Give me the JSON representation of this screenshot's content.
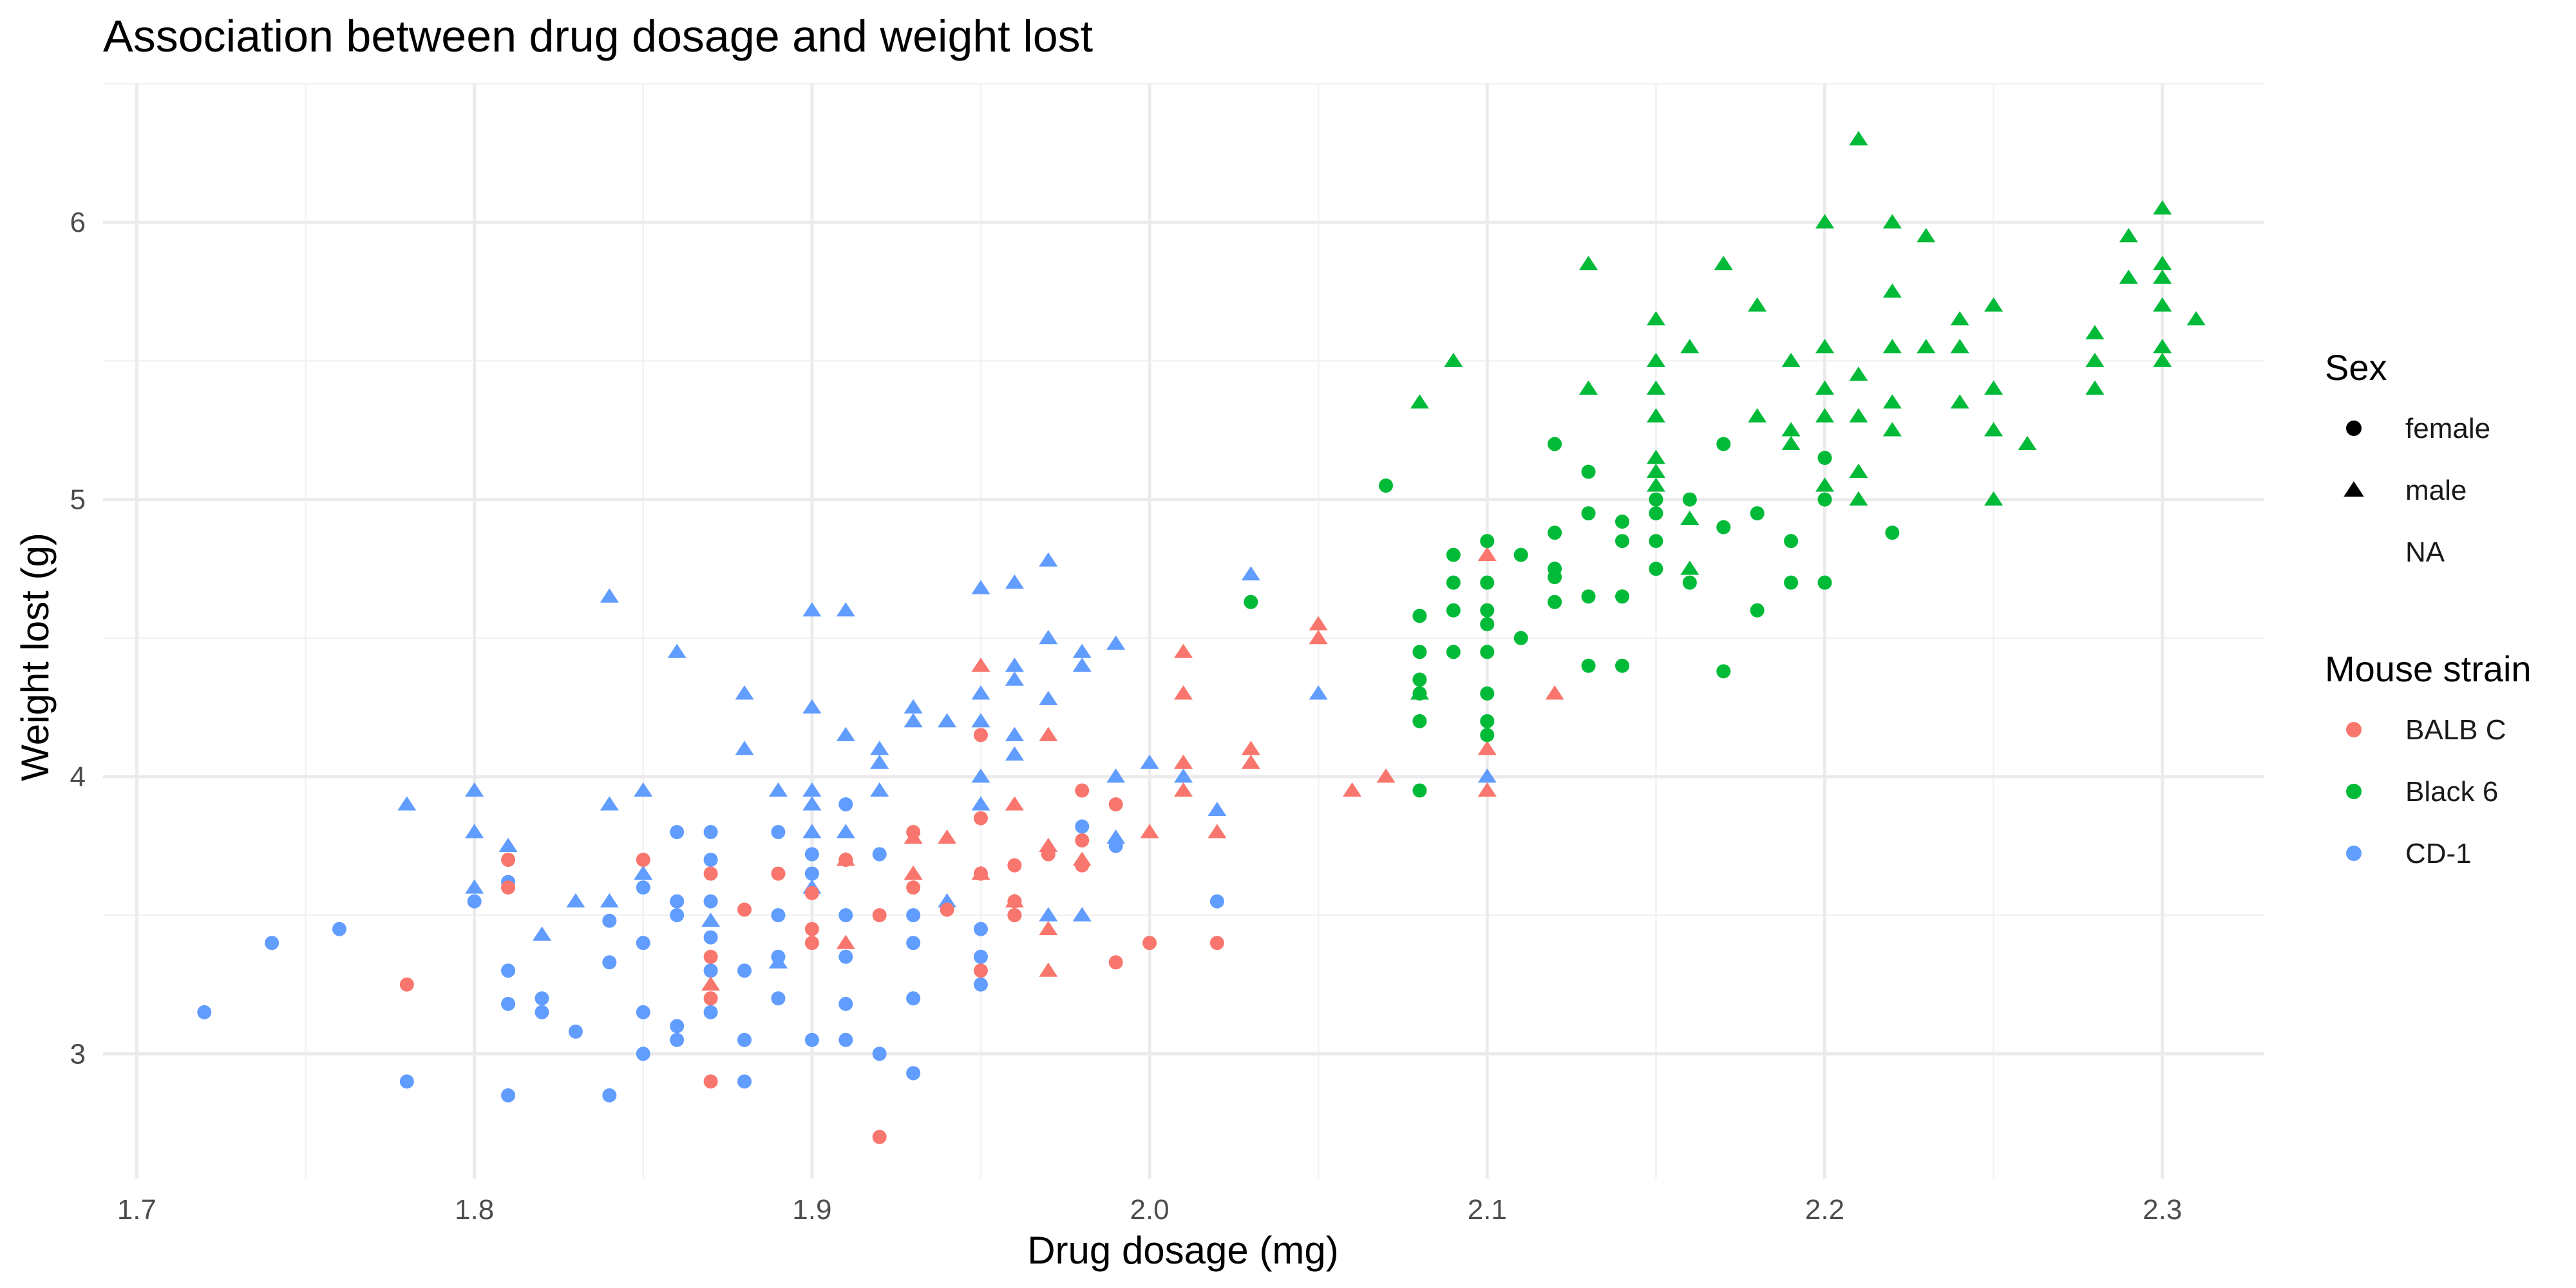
{
  "chart_data": {
    "type": "scatter",
    "title": "Association between drug dosage and weight lost",
    "xlabel": "Drug dosage (mg)",
    "ylabel": "Weight lost (g)",
    "xlim": [
      1.69,
      2.33
    ],
    "ylim": [
      2.55,
      6.5
    ],
    "x_ticks": [
      "1.7",
      "1.8",
      "1.9",
      "2.0",
      "2.1",
      "2.2",
      "2.3"
    ],
    "y_ticks": [
      "3",
      "4",
      "5",
      "6"
    ],
    "grid": true,
    "legend_position": "right",
    "colors": {
      "BALB C": "#F8766D",
      "Black 6": "#00BA38",
      "CD-1": "#619CFF"
    },
    "legends": [
      {
        "title": "Sex",
        "items": [
          {
            "label": "female",
            "shape": "circle"
          },
          {
            "label": "male",
            "shape": "triangle"
          },
          {
            "label": "NA",
            "shape": "none"
          }
        ]
      },
      {
        "title": "Mouse strain",
        "items": [
          {
            "label": "BALB C",
            "shape": "circle"
          },
          {
            "label": "Black 6",
            "shape": "circle"
          },
          {
            "label": "CD-1",
            "shape": "circle"
          }
        ]
      }
    ],
    "series": [
      {
        "strain": "CD-1",
        "sex": "female",
        "points": [
          [
            1.72,
            3.15
          ],
          [
            1.74,
            3.4
          ],
          [
            1.76,
            3.45
          ],
          [
            1.78,
            2.9
          ],
          [
            1.8,
            3.55
          ],
          [
            1.81,
            3.62
          ],
          [
            1.81,
            3.3
          ],
          [
            1.81,
            3.18
          ],
          [
            1.81,
            2.85
          ],
          [
            1.82,
            3.2
          ],
          [
            1.82,
            3.15
          ],
          [
            1.83,
            3.08
          ],
          [
            1.84,
            3.48
          ],
          [
            1.84,
            3.33
          ],
          [
            1.84,
            2.85
          ],
          [
            1.85,
            3.4
          ],
          [
            1.85,
            3.15
          ],
          [
            1.85,
            3.0
          ],
          [
            1.85,
            3.6
          ],
          [
            1.86,
            3.8
          ],
          [
            1.86,
            3.55
          ],
          [
            1.86,
            3.5
          ],
          [
            1.86,
            3.1
          ],
          [
            1.86,
            3.05
          ],
          [
            1.87,
            3.8
          ],
          [
            1.87,
            3.7
          ],
          [
            1.87,
            3.55
          ],
          [
            1.87,
            3.42
          ],
          [
            1.87,
            3.3
          ],
          [
            1.87,
            3.15
          ],
          [
            1.88,
            3.3
          ],
          [
            1.88,
            3.05
          ],
          [
            1.88,
            2.9
          ],
          [
            1.89,
            3.8
          ],
          [
            1.89,
            3.5
          ],
          [
            1.89,
            3.35
          ],
          [
            1.89,
            3.2
          ],
          [
            1.9,
            3.72
          ],
          [
            1.9,
            3.65
          ],
          [
            1.9,
            3.05
          ],
          [
            1.91,
            3.9
          ],
          [
            1.91,
            3.5
          ],
          [
            1.91,
            3.35
          ],
          [
            1.91,
            3.18
          ],
          [
            1.91,
            3.05
          ],
          [
            1.92,
            3.72
          ],
          [
            1.92,
            3.0
          ],
          [
            1.93,
            3.5
          ],
          [
            1.93,
            3.4
          ],
          [
            1.93,
            3.2
          ],
          [
            1.93,
            2.93
          ],
          [
            1.95,
            3.45
          ],
          [
            1.95,
            3.35
          ],
          [
            1.95,
            3.25
          ],
          [
            1.98,
            3.82
          ],
          [
            1.99,
            3.75
          ],
          [
            2.02,
            3.55
          ]
        ]
      },
      {
        "strain": "CD-1",
        "sex": "male",
        "points": [
          [
            1.78,
            3.9
          ],
          [
            1.8,
            3.95
          ],
          [
            1.8,
            3.8
          ],
          [
            1.8,
            3.6
          ],
          [
            1.81,
            3.75
          ],
          [
            1.82,
            3.43
          ],
          [
            1.83,
            3.55
          ],
          [
            1.84,
            4.65
          ],
          [
            1.84,
            3.9
          ],
          [
            1.84,
            3.55
          ],
          [
            1.85,
            3.95
          ],
          [
            1.85,
            3.65
          ],
          [
            1.86,
            4.45
          ],
          [
            1.87,
            3.48
          ],
          [
            1.88,
            4.3
          ],
          [
            1.88,
            4.1
          ],
          [
            1.89,
            3.95
          ],
          [
            1.89,
            3.33
          ],
          [
            1.9,
            4.6
          ],
          [
            1.9,
            4.25
          ],
          [
            1.9,
            3.95
          ],
          [
            1.9,
            3.9
          ],
          [
            1.9,
            3.8
          ],
          [
            1.9,
            3.6
          ],
          [
            1.91,
            4.6
          ],
          [
            1.91,
            4.15
          ],
          [
            1.91,
            3.8
          ],
          [
            1.92,
            4.1
          ],
          [
            1.92,
            4.05
          ],
          [
            1.92,
            3.95
          ],
          [
            1.93,
            4.25
          ],
          [
            1.93,
            4.2
          ],
          [
            1.94,
            4.2
          ],
          [
            1.94,
            3.55
          ],
          [
            1.95,
            4.68
          ],
          [
            1.95,
            4.3
          ],
          [
            1.95,
            4.2
          ],
          [
            1.95,
            4.0
          ],
          [
            1.95,
            3.9
          ],
          [
            1.96,
            4.7
          ],
          [
            1.96,
            4.4
          ],
          [
            1.96,
            4.35
          ],
          [
            1.96,
            4.15
          ],
          [
            1.96,
            4.08
          ],
          [
            1.97,
            4.78
          ],
          [
            1.97,
            4.5
          ],
          [
            1.97,
            4.28
          ],
          [
            1.97,
            3.5
          ],
          [
            1.98,
            4.45
          ],
          [
            1.98,
            4.4
          ],
          [
            1.98,
            3.5
          ],
          [
            1.99,
            4.48
          ],
          [
            1.99,
            4.0
          ],
          [
            1.99,
            3.78
          ],
          [
            2.0,
            4.05
          ],
          [
            2.01,
            4.0
          ],
          [
            2.02,
            3.88
          ],
          [
            2.03,
            4.73
          ],
          [
            2.05,
            4.3
          ],
          [
            2.1,
            4.0
          ]
        ]
      },
      {
        "strain": "BALB C",
        "sex": "female",
        "points": [
          [
            1.78,
            3.25
          ],
          [
            1.81,
            3.7
          ],
          [
            1.81,
            3.6
          ],
          [
            1.85,
            3.7
          ],
          [
            1.87,
            3.65
          ],
          [
            1.87,
            3.35
          ],
          [
            1.87,
            3.2
          ],
          [
            1.87,
            2.9
          ],
          [
            1.88,
            3.52
          ],
          [
            1.89,
            3.65
          ],
          [
            1.9,
            3.58
          ],
          [
            1.9,
            3.45
          ],
          [
            1.9,
            3.4
          ],
          [
            1.91,
            3.7
          ],
          [
            1.92,
            3.5
          ],
          [
            1.92,
            2.7
          ],
          [
            1.93,
            3.8
          ],
          [
            1.93,
            3.6
          ],
          [
            1.94,
            3.52
          ],
          [
            1.95,
            4.15
          ],
          [
            1.95,
            3.85
          ],
          [
            1.95,
            3.65
          ],
          [
            1.95,
            3.3
          ],
          [
            1.96,
            3.68
          ],
          [
            1.96,
            3.55
          ],
          [
            1.96,
            3.5
          ],
          [
            1.97,
            3.72
          ],
          [
            1.98,
            3.95
          ],
          [
            1.98,
            3.77
          ],
          [
            1.98,
            3.68
          ],
          [
            1.99,
            3.9
          ],
          [
            1.99,
            3.33
          ],
          [
            2.0,
            3.4
          ],
          [
            2.02,
            3.4
          ]
        ]
      },
      {
        "strain": "BALB C",
        "sex": "male",
        "points": [
          [
            1.87,
            3.25
          ],
          [
            1.91,
            3.4
          ],
          [
            1.91,
            3.7
          ],
          [
            1.93,
            3.78
          ],
          [
            1.93,
            3.65
          ],
          [
            1.94,
            3.78
          ],
          [
            1.95,
            4.4
          ],
          [
            1.95,
            3.65
          ],
          [
            1.96,
            3.9
          ],
          [
            1.96,
            3.55
          ],
          [
            1.97,
            4.15
          ],
          [
            1.97,
            3.75
          ],
          [
            1.97,
            3.45
          ],
          [
            1.97,
            3.3
          ],
          [
            1.98,
            3.7
          ],
          [
            2.0,
            3.8
          ],
          [
            2.01,
            4.45
          ],
          [
            2.01,
            4.3
          ],
          [
            2.01,
            4.05
          ],
          [
            2.01,
            3.95
          ],
          [
            2.02,
            3.8
          ],
          [
            2.03,
            4.1
          ],
          [
            2.03,
            4.05
          ],
          [
            2.05,
            4.55
          ],
          [
            2.05,
            4.5
          ],
          [
            2.06,
            3.95
          ],
          [
            2.07,
            4.0
          ],
          [
            2.1,
            4.8
          ],
          [
            2.1,
            4.1
          ],
          [
            2.1,
            3.95
          ],
          [
            2.12,
            4.3
          ]
        ]
      },
      {
        "strain": "Black 6",
        "sex": "female",
        "points": [
          [
            2.03,
            4.63
          ],
          [
            2.07,
            5.05
          ],
          [
            2.08,
            4.58
          ],
          [
            2.08,
            4.45
          ],
          [
            2.08,
            4.35
          ],
          [
            2.08,
            4.3
          ],
          [
            2.08,
            4.2
          ],
          [
            2.08,
            3.95
          ],
          [
            2.09,
            4.8
          ],
          [
            2.09,
            4.7
          ],
          [
            2.09,
            4.6
          ],
          [
            2.09,
            4.45
          ],
          [
            2.1,
            4.85
          ],
          [
            2.1,
            4.7
          ],
          [
            2.1,
            4.6
          ],
          [
            2.1,
            4.55
          ],
          [
            2.1,
            4.45
          ],
          [
            2.1,
            4.3
          ],
          [
            2.1,
            4.2
          ],
          [
            2.1,
            4.15
          ],
          [
            2.11,
            4.8
          ],
          [
            2.11,
            4.5
          ],
          [
            2.12,
            5.2
          ],
          [
            2.12,
            4.88
          ],
          [
            2.12,
            4.75
          ],
          [
            2.12,
            4.72
          ],
          [
            2.12,
            4.63
          ],
          [
            2.13,
            5.1
          ],
          [
            2.13,
            4.95
          ],
          [
            2.13,
            4.65
          ],
          [
            2.13,
            4.4
          ],
          [
            2.14,
            4.92
          ],
          [
            2.14,
            4.85
          ],
          [
            2.14,
            4.65
          ],
          [
            2.14,
            4.4
          ],
          [
            2.15,
            5.0
          ],
          [
            2.15,
            4.95
          ],
          [
            2.15,
            4.85
          ],
          [
            2.15,
            4.75
          ],
          [
            2.16,
            5.0
          ],
          [
            2.16,
            4.7
          ],
          [
            2.17,
            5.2
          ],
          [
            2.17,
            4.9
          ],
          [
            2.17,
            4.38
          ],
          [
            2.18,
            4.95
          ],
          [
            2.18,
            4.6
          ],
          [
            2.19,
            4.85
          ],
          [
            2.19,
            4.7
          ],
          [
            2.2,
            5.15
          ],
          [
            2.2,
            5.0
          ],
          [
            2.2,
            4.7
          ],
          [
            2.22,
            4.88
          ]
        ]
      },
      {
        "strain": "Black 6",
        "sex": "male",
        "points": [
          [
            2.08,
            5.35
          ],
          [
            2.08,
            4.3
          ],
          [
            2.09,
            5.5
          ],
          [
            2.13,
            5.85
          ],
          [
            2.13,
            5.4
          ],
          [
            2.15,
            5.65
          ],
          [
            2.15,
            5.5
          ],
          [
            2.15,
            5.4
          ],
          [
            2.15,
            5.3
          ],
          [
            2.15,
            5.15
          ],
          [
            2.15,
            5.1
          ],
          [
            2.15,
            5.05
          ],
          [
            2.16,
            5.55
          ],
          [
            2.16,
            4.93
          ],
          [
            2.16,
            4.75
          ],
          [
            2.17,
            5.85
          ],
          [
            2.18,
            5.7
          ],
          [
            2.18,
            5.3
          ],
          [
            2.19,
            5.5
          ],
          [
            2.19,
            5.25
          ],
          [
            2.19,
            5.2
          ],
          [
            2.2,
            6.0
          ],
          [
            2.2,
            5.55
          ],
          [
            2.2,
            5.4
          ],
          [
            2.2,
            5.3
          ],
          [
            2.2,
            5.05
          ],
          [
            2.21,
            6.3
          ],
          [
            2.21,
            5.45
          ],
          [
            2.21,
            5.3
          ],
          [
            2.21,
            5.1
          ],
          [
            2.21,
            5.0
          ],
          [
            2.22,
            6.0
          ],
          [
            2.22,
            5.75
          ],
          [
            2.22,
            5.55
          ],
          [
            2.22,
            5.35
          ],
          [
            2.22,
            5.25
          ],
          [
            2.23,
            5.95
          ],
          [
            2.23,
            5.55
          ],
          [
            2.24,
            5.65
          ],
          [
            2.24,
            5.55
          ],
          [
            2.24,
            5.35
          ],
          [
            2.25,
            5.7
          ],
          [
            2.25,
            5.4
          ],
          [
            2.25,
            5.25
          ],
          [
            2.25,
            5.0
          ],
          [
            2.26,
            5.2
          ],
          [
            2.28,
            5.6
          ],
          [
            2.28,
            5.5
          ],
          [
            2.28,
            5.4
          ],
          [
            2.29,
            5.95
          ],
          [
            2.29,
            5.8
          ],
          [
            2.3,
            6.05
          ],
          [
            2.3,
            5.85
          ],
          [
            2.3,
            5.8
          ],
          [
            2.3,
            5.7
          ],
          [
            2.3,
            5.55
          ],
          [
            2.3,
            5.5
          ],
          [
            2.31,
            5.65
          ]
        ]
      }
    ]
  }
}
